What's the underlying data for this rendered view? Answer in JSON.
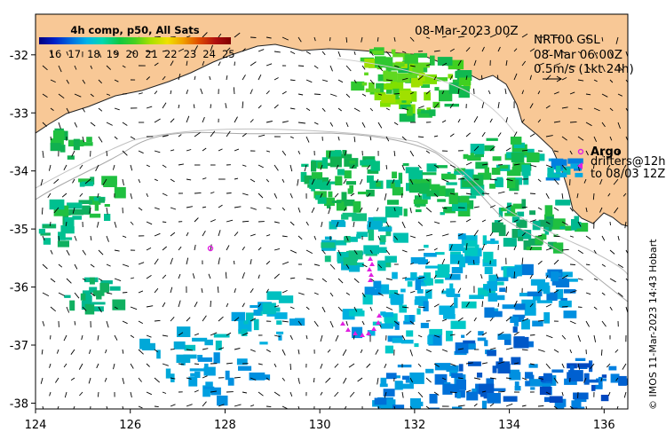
{
  "colorbar": {
    "title": "4h comp, p50, All Sats",
    "ticks": [
      "16",
      "17",
      "18",
      "19",
      "20",
      "21",
      "22",
      "23",
      "24",
      "25"
    ],
    "colors": [
      "#000080",
      "#0020c8",
      "#0070e0",
      "#00b4e8",
      "#00d8b0",
      "#10c840",
      "#48d020",
      "#a8e000",
      "#f0e000",
      "#f0a000",
      "#e05000",
      "#b01010",
      "#800000"
    ]
  },
  "header": {
    "date": "08-Mar-2023 00Z",
    "source": "NRT00 GSL",
    "time": "08-Mar 06:00Z",
    "scale_note": "0.5m/s (1kt 24h)"
  },
  "legend": {
    "argo": "Argo",
    "drifters_line1": "drifters@12h",
    "drifters_line2": "to 08/03 12Z"
  },
  "credit": "© IMOS 11-Mar-2023 14:43 Hobart",
  "axes": {
    "x_ticks": [
      "124",
      "126",
      "128",
      "130",
      "132",
      "134",
      "136"
    ],
    "y_ticks": [
      "-32",
      "-33",
      "-34",
      "-35",
      "-36",
      "-37",
      "-38"
    ],
    "lon_range": [
      124,
      136.5
    ],
    "lat_range": [
      -38.1,
      -31.3
    ]
  },
  "map_colors": {
    "land": "#f8c896",
    "ocean": "#ffffff",
    "markers": "#e020e0"
  }
}
